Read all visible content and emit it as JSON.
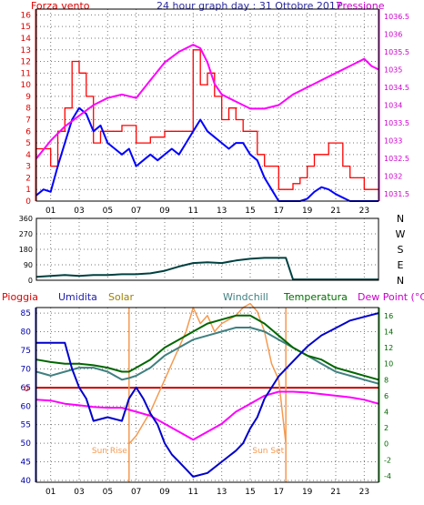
{
  "colors": {
    "wind": "#ff0000",
    "gust_fill": "#ff0000",
    "pressure": "#ff00ff",
    "windavg": "#0000ff",
    "direction": "#004040",
    "rain": "#cc0000",
    "humidity": "#0000cc",
    "solar": "#f59a50",
    "windchill": "#408080",
    "temperature": "#006600",
    "dewpoint": "#ff00ff",
    "grid": "#7a7a7a",
    "axis_left": "#e00000",
    "axis_right": "#cc00cc",
    "sun_line": "#f59a50"
  },
  "chart_data": [
    {
      "type": "line",
      "title": "24 hour graph day : 31 Ottobre 2017",
      "left_label": "Forza vento",
      "right_label": "Pressione",
      "x_ticks": [
        "01",
        "03",
        "05",
        "07",
        "09",
        "11",
        "13",
        "15",
        "17",
        "19",
        "21",
        "23"
      ],
      "ylim_left": [
        0,
        16.5
      ],
      "y_ticks_left": [
        "16",
        "15",
        "14",
        "13",
        "12",
        "11",
        "10",
        "9",
        "8",
        "7",
        "6",
        "5",
        "4",
        "3",
        "2",
        "1",
        "0"
      ],
      "ylim_right": [
        1031.3,
        1036.7
      ],
      "y_ticks_right": [
        "1036.5",
        "1036",
        "1035.5",
        "1035",
        "1034.5",
        "1034",
        "1033.5",
        "1033",
        "1032.5",
        "1032",
        "1031.5"
      ],
      "grid": true,
      "series": [
        {
          "key": "gust",
          "x": [
            0,
            1,
            1.5,
            2,
            2.5,
            3,
            3.5,
            4,
            4.5,
            5,
            6,
            7,
            8,
            9,
            10,
            11,
            11.5,
            12,
            12.5,
            13,
            13.5,
            14,
            14.5,
            15,
            15.5,
            16,
            17,
            18,
            18.5,
            19,
            19.5,
            20,
            20.5,
            21,
            21.5,
            22,
            23,
            24
          ],
          "values": [
            4.5,
            3,
            6,
            8,
            12,
            11,
            9,
            5,
            6,
            6,
            6.5,
            5,
            5.5,
            6,
            6,
            13,
            10,
            11,
            9,
            7,
            8,
            7,
            6,
            6,
            4,
            3,
            1,
            1.5,
            2,
            3,
            4,
            4,
            5,
            5,
            3,
            2,
            1,
            1
          ]
        },
        {
          "key": "avg",
          "x": [
            0,
            0.5,
            1,
            1.5,
            2,
            2.5,
            3,
            3.5,
            4,
            4.5,
            5,
            5.5,
            6,
            6.5,
            7,
            7.5,
            8,
            8.5,
            9,
            9.5,
            10,
            10.5,
            11,
            11.5,
            12,
            12.5,
            13,
            13.5,
            14,
            14.5,
            15,
            15.5,
            16,
            16.5,
            17,
            17.5,
            18,
            18.5,
            19,
            19.5,
            20,
            20.5,
            21,
            21.5,
            22,
            23,
            24
          ],
          "values": [
            0.5,
            1,
            0.8,
            3,
            5,
            7,
            8,
            7.5,
            6,
            6.5,
            5,
            4.5,
            4,
            4.5,
            3,
            3.5,
            4,
            3.5,
            4,
            4.5,
            4,
            5,
            6,
            7,
            6,
            5.5,
            5,
            4.5,
            5,
            5,
            4,
            3.5,
            2,
            1,
            0,
            0,
            0,
            0,
            0.2,
            0.8,
            1.2,
            1,
            0.6,
            0.3,
            0,
            0,
            0
          ]
        },
        {
          "key": "pressure",
          "x": [
            0,
            1,
            2,
            3,
            4,
            5,
            6,
            7,
            8,
            9,
            10,
            10.5,
            11,
            11.5,
            12,
            12.5,
            13,
            14,
            15,
            16,
            17,
            18,
            19,
            20,
            21,
            22,
            22.5,
            23,
            23.5,
            24
          ],
          "values": [
            1032.5,
            1033,
            1033.4,
            1033.7,
            1034,
            1034.2,
            1034.3,
            1034.2,
            1034.7,
            1035.2,
            1035.5,
            1035.6,
            1035.7,
            1035.6,
            1035.2,
            1034.6,
            1034.3,
            1034.1,
            1033.9,
            1033.9,
            1034,
            1034.3,
            1034.5,
            1034.7,
            1034.9,
            1035.1,
            1035.2,
            1035.3,
            1035.1,
            1035.0
          ]
        }
      ]
    },
    {
      "type": "line",
      "ylabel_ticks": [
        "360",
        "270",
        "180",
        "90",
        "0"
      ],
      "compass": [
        "N",
        "W",
        "S",
        "E",
        "N"
      ],
      "ylim": [
        0,
        360
      ],
      "grid": true,
      "series": [
        {
          "key": "direction",
          "x": [
            0,
            1,
            2,
            3,
            4,
            5,
            6,
            7,
            8,
            9,
            10,
            11,
            12,
            13,
            14,
            15,
            16,
            17,
            17.5,
            18,
            19,
            20,
            21,
            22,
            23,
            24
          ],
          "values": [
            20,
            25,
            30,
            25,
            30,
            30,
            35,
            35,
            40,
            55,
            80,
            100,
            105,
            100,
            115,
            125,
            130,
            130,
            130,
            5,
            5,
            5,
            5,
            5,
            5,
            5
          ]
        }
      ]
    },
    {
      "type": "line",
      "labels": [
        "Pioggia",
        "Umidita",
        "Solar",
        "Windchill",
        "Temperatura",
        "Dew Point (°C)"
      ],
      "ylim_left": [
        39.5,
        86.5
      ],
      "y_ticks_left": [
        "85",
        "80",
        "75",
        "70",
        "65",
        "60",
        "55",
        "50",
        "45",
        "40"
      ],
      "ylim_right": [
        -4.8,
        17
      ],
      "y_ticks_right": [
        "16",
        "14",
        "12",
        "10",
        "8",
        "6",
        "4",
        "2",
        "0",
        "-2",
        "-4"
      ],
      "rain_zero_label": "0",
      "sunrise_label": "Sun Rise",
      "sunset_label": "Sun Set",
      "sunrise_hour": 6.5,
      "sunset_hour": 17.5,
      "grid": true,
      "series": [
        {
          "key": "humidity",
          "x": [
            0,
            1,
            2,
            2.5,
            3,
            3.5,
            4,
            5,
            6,
            6.5,
            7,
            7.5,
            8,
            8.5,
            9,
            9.5,
            10,
            10.5,
            11,
            12,
            13,
            14,
            14.5,
            15,
            15.5,
            16,
            17,
            18,
            19,
            20,
            21,
            22,
            23,
            24
          ],
          "values": [
            77,
            77,
            77,
            70,
            65,
            62,
            56,
            57,
            56,
            62,
            65,
            62,
            58,
            55,
            50,
            47,
            45,
            43,
            41,
            42,
            45,
            48,
            50,
            54,
            57,
            62,
            68,
            72,
            76,
            79,
            81,
            83,
            84,
            85
          ]
        },
        {
          "key": "windchill",
          "x": [
            0,
            1,
            2,
            3,
            4,
            5,
            6,
            6.5,
            7,
            8,
            9,
            10,
            11,
            12,
            13,
            14,
            15,
            16,
            17,
            18,
            19,
            20,
            21,
            22,
            23,
            24
          ],
          "values": [
            9,
            8.5,
            9,
            9.5,
            9.5,
            9,
            8,
            8.2,
            8.5,
            9.5,
            11,
            12,
            13,
            13.5,
            14,
            14.5,
            14.5,
            14,
            13,
            12,
            11,
            10,
            9,
            8.5,
            8,
            7.5
          ]
        },
        {
          "key": "temperature",
          "x": [
            0,
            1,
            2,
            3,
            4,
            5,
            6,
            6.5,
            7,
            8,
            9,
            10,
            11,
            12,
            13,
            14,
            15,
            16,
            17,
            18,
            19,
            20,
            21,
            22,
            23,
            24
          ],
          "values": [
            10.5,
            10.2,
            10,
            10,
            9.8,
            9.5,
            9,
            9,
            9.5,
            10.5,
            12,
            13,
            14,
            15,
            15.5,
            16,
            16,
            15,
            13.5,
            12,
            11,
            10.5,
            9.5,
            9,
            8.5,
            8
          ]
        },
        {
          "key": "dewpoint",
          "x": [
            0,
            1,
            2,
            3,
            4,
            5,
            6,
            7,
            8,
            9,
            10,
            11,
            12,
            13,
            14,
            15,
            16,
            17,
            18,
            19,
            20,
            21,
            22,
            23,
            24
          ],
          "values": [
            5.5,
            5.4,
            5,
            4.8,
            4.6,
            4.5,
            4.5,
            4,
            3.5,
            2.5,
            1.5,
            0.5,
            1.5,
            2.5,
            4,
            5,
            6,
            6.5,
            6.5,
            6.4,
            6.2,
            6,
            5.8,
            5.5,
            5
          ]
        },
        {
          "key": "solar",
          "x": [
            6.5,
            7,
            8,
            9,
            10,
            10.5,
            11,
            11.5,
            12,
            12.5,
            13,
            13.5,
            14,
            14.5,
            15,
            15.5,
            16,
            16.5,
            17,
            17.5
          ],
          "values": [
            0,
            1,
            4,
            8,
            12,
            14,
            17,
            15,
            16,
            14,
            15,
            15.5,
            16,
            17,
            17.5,
            16.5,
            14,
            10,
            8,
            0
          ]
        }
      ]
    }
  ]
}
